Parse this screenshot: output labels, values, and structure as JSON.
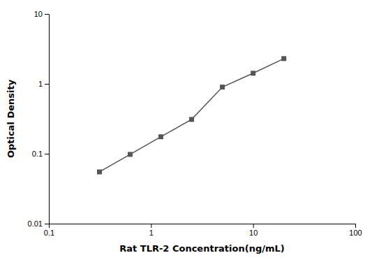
{
  "chart_data": {
    "type": "line",
    "x": [
      0.313,
      0.625,
      1.25,
      2.5,
      5.0,
      10.0,
      20.0
    ],
    "values": [
      0.055,
      0.098,
      0.175,
      0.31,
      0.9,
      1.42,
      2.3
    ],
    "xlabel": "Rat TLR-2 Concentration(ng/mL)",
    "ylabel": "Optical Density",
    "xlim": [
      0.1,
      100
    ],
    "ylim": [
      0.01,
      10
    ],
    "xticks": [
      0.1,
      1,
      10,
      100
    ],
    "yticks": [
      0.01,
      0.1,
      1,
      10
    ],
    "log": true,
    "grid": false,
    "color": "#555555",
    "marker": "square",
    "line_style": "solid"
  }
}
